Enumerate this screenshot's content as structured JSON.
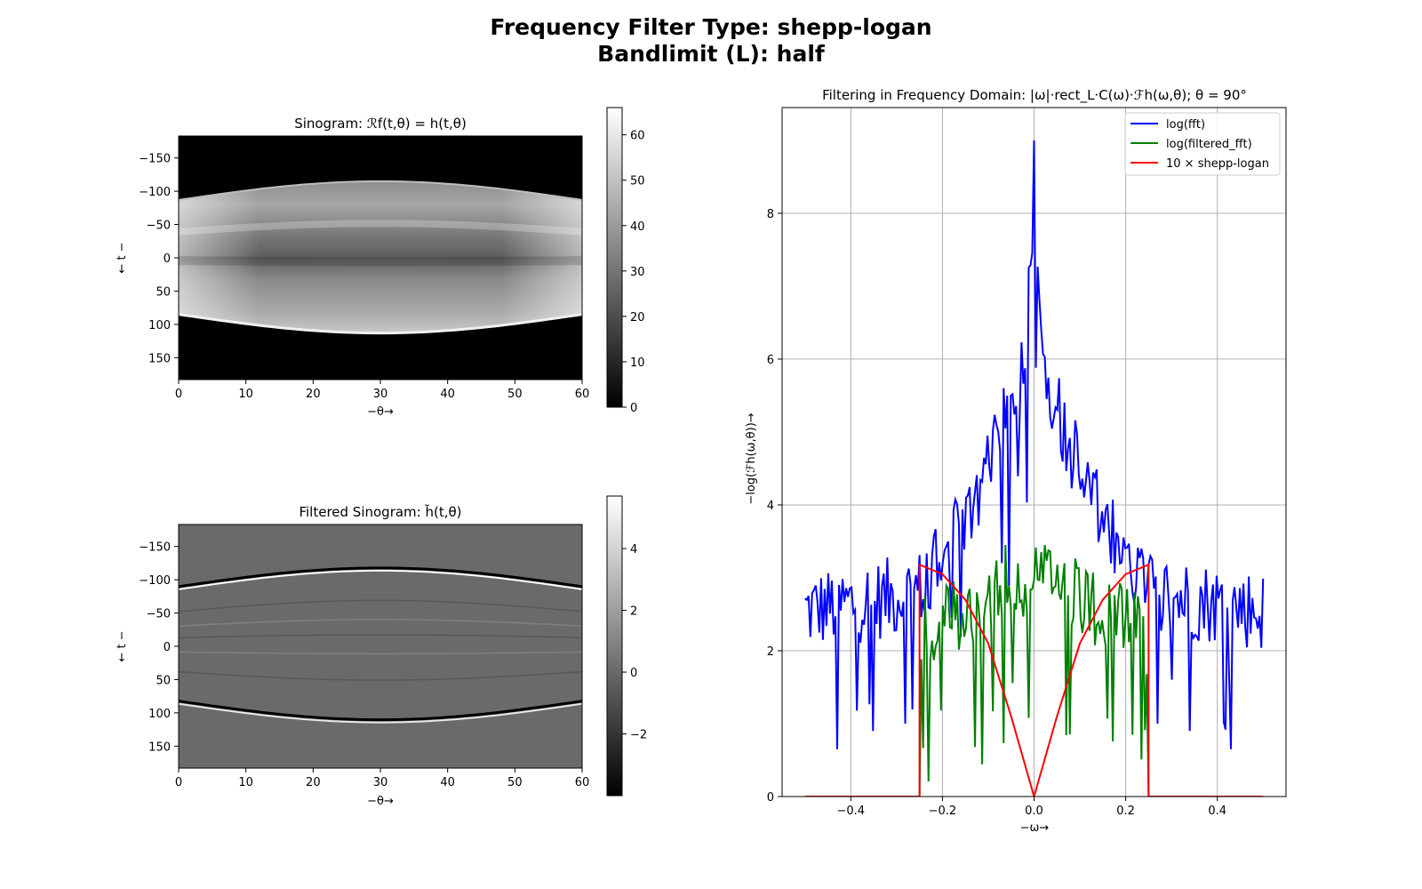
{
  "suptitle": {
    "line1": "Frequency Filter Type: shepp-logan",
    "line2": "Bandlimit (L): half"
  },
  "sinogram": {
    "title": "Sinogram: ℛf(t,θ) = h(t,θ)",
    "xlabel": "−θ→",
    "ylabel": "← t −",
    "xticks": [
      "0",
      "10",
      "20",
      "30",
      "40",
      "50",
      "60"
    ],
    "yticks": [
      "−150",
      "−100",
      "−50",
      "0",
      "50",
      "100",
      "150"
    ],
    "xlim": [
      0,
      60
    ],
    "ylim": [
      -183,
      183
    ],
    "colorbar_ticks": [
      "0",
      "10",
      "20",
      "30",
      "40",
      "50",
      "60"
    ],
    "colorbar_range": [
      0,
      66
    ]
  },
  "filtered_sinogram": {
    "title": "Filtered Sinogram: h̃(t,θ)",
    "xlabel": "−θ→",
    "ylabel": "← t −",
    "xticks": [
      "0",
      "10",
      "20",
      "30",
      "40",
      "50",
      "60"
    ],
    "yticks": [
      "−150",
      "−100",
      "−50",
      "0",
      "50",
      "100",
      "150"
    ],
    "xlim": [
      0,
      60
    ],
    "ylim": [
      -183,
      183
    ],
    "colorbar_ticks": [
      "−2",
      "0",
      "2",
      "4"
    ],
    "colorbar_range": [
      -4,
      5.7
    ]
  },
  "colors": {
    "fft": "#0000ff",
    "filtered_fft": "#008000",
    "filter": "#ff0000",
    "grid": "#b0b0b0"
  },
  "chart_data": {
    "type": "line",
    "title": "Filtering in Frequency Domain: |ω|·rect_L·C(ω)·ℱh(ω,θ); θ = 90°",
    "xlabel": "−ω→",
    "ylabel": "−log(ℱh(ω,θ))→",
    "xlim": [
      -0.55,
      0.55
    ],
    "ylim": [
      0,
      9.45
    ],
    "xticks": [
      "−0.4",
      "−0.2",
      "0.0",
      "0.2",
      "0.4"
    ],
    "xtick_values": [
      -0.4,
      -0.2,
      0.0,
      0.2,
      0.4
    ],
    "yticks": [
      "0",
      "2",
      "4",
      "6",
      "8"
    ],
    "ytick_values": [
      0,
      2,
      4,
      6,
      8
    ],
    "grid": true,
    "legend_position": "top-right",
    "series": [
      {
        "name": "log(fft)",
        "description": "noisy spectrum, peak 9.0 at ω=0, ~5.5-6.5 near |ω|=0.02, ~3.5 at |ω|=0.2, ~2.8 mean beyond with dips to ~0.7 at ±0.43",
        "envelope_x": [
          0,
          0.004,
          0.02,
          0.05,
          0.1,
          0.15,
          0.2,
          0.25,
          0.3,
          0.4,
          0.5
        ],
        "envelope_y": [
          9.0,
          7.5,
          6.1,
          5.4,
          4.5,
          3.8,
          3.3,
          2.9,
          2.8,
          2.7,
          2.6
        ],
        "dips": [
          [
            -0.43,
            0.65
          ],
          [
            0.43,
            0.65
          ],
          [
            -0.28,
            1.0
          ],
          [
            0.27,
            1.0
          ],
          [
            -0.35,
            0.9
          ],
          [
            0.34,
            0.9
          ]
        ]
      },
      {
        "name": "log(filtered_fft)",
        "description": "nonzero only for |ω|<0.25, ~2.6-3.4 with dips to ~0.4 near ±0.22",
        "envelope_x": [
          0,
          0.05,
          0.1,
          0.15,
          0.2,
          0.245
        ],
        "envelope_y": [
          3.0,
          3.0,
          2.8,
          2.5,
          2.4,
          2.2
        ],
        "support": [
          -0.25,
          0.25
        ]
      },
      {
        "name": "10 × shepp-logan",
        "cutoff": 0.25,
        "peak": 3.18,
        "x": [
          -0.5,
          -0.25,
          -0.25,
          -0.2,
          -0.15,
          -0.1,
          -0.05,
          0.0,
          0.05,
          0.1,
          0.15,
          0.2,
          0.25,
          0.25,
          0.5
        ],
        "y": [
          0,
          0,
          3.18,
          3.05,
          2.7,
          2.1,
          1.1,
          0.0,
          1.1,
          2.1,
          2.7,
          3.05,
          3.18,
          0,
          0
        ]
      }
    ]
  }
}
